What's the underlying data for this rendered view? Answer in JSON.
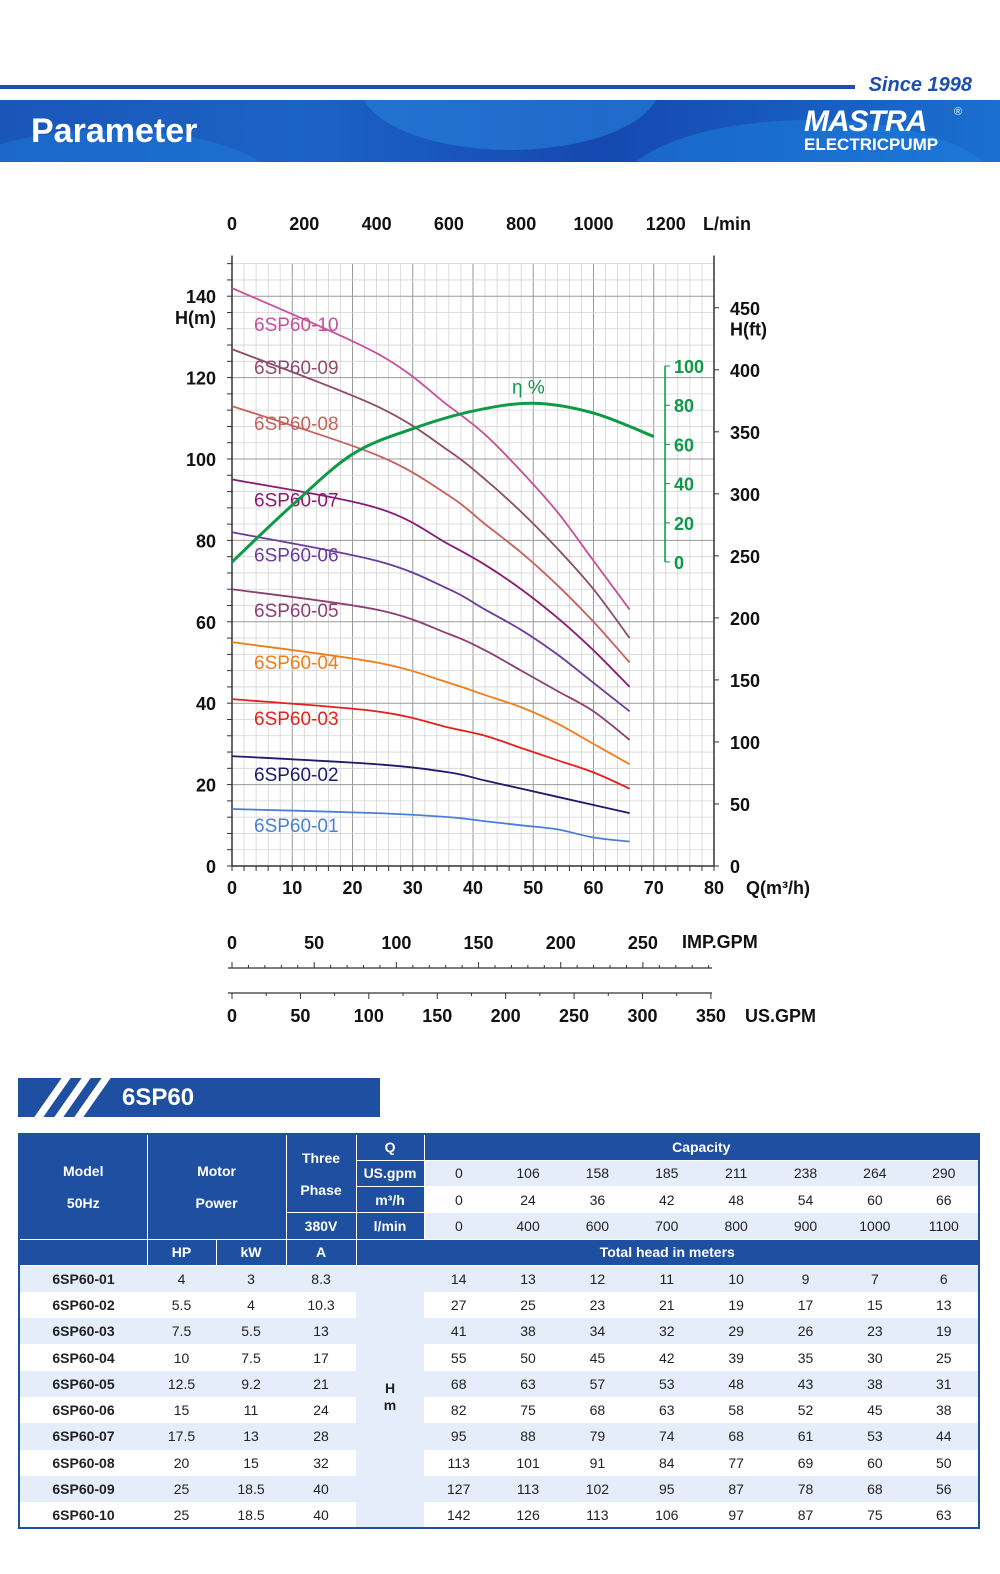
{
  "header": {
    "since": "Since 1998",
    "title": "Parameter",
    "logo_mark": "MASTRA",
    "logo_sub": "ELECTRICPUMP",
    "logo_reg": "®"
  },
  "chart_data": {
    "type": "line",
    "x_axis": {
      "label": "Q(m³/h)",
      "range": [
        0,
        80
      ],
      "ticks": [
        0,
        10,
        20,
        30,
        40,
        50,
        60,
        70,
        80
      ]
    },
    "y_axis": {
      "label": "H(m)",
      "range": [
        0,
        140
      ],
      "ticks": [
        0,
        20,
        40,
        60,
        80,
        100,
        120,
        140
      ]
    },
    "y_axis_right": {
      "label": "H(ft)",
      "ticks": [
        0,
        50,
        100,
        150,
        200,
        250,
        300,
        350,
        400,
        450
      ]
    },
    "x_axis_top": {
      "label": "L/min",
      "ticks": [
        0,
        200,
        400,
        600,
        800,
        1000,
        1200
      ]
    },
    "imp_axis": {
      "label": "IMP.GPM",
      "ticks": [
        0,
        50,
        100,
        150,
        200,
        250
      ]
    },
    "us_axis": {
      "label": "US.GPM",
      "ticks": [
        0,
        50,
        100,
        150,
        200,
        250,
        300,
        350
      ]
    },
    "eta_axis": {
      "label": "η %",
      "ticks": [
        0,
        20,
        40,
        60,
        80,
        100
      ]
    },
    "grid": true,
    "x": [
      0,
      24,
      36,
      42,
      48,
      54,
      60,
      66
    ],
    "series": [
      {
        "name": "6SP60-01",
        "color": "#4a7fd6",
        "values": [
          14,
          13,
          12,
          11,
          10,
          9,
          7,
          6
        ]
      },
      {
        "name": "6SP60-02",
        "color": "#1e1a6e",
        "values": [
          27,
          25,
          23,
          21,
          19,
          17,
          15,
          13
        ]
      },
      {
        "name": "6SP60-03",
        "color": "#e3211c",
        "values": [
          41,
          38,
          34,
          32,
          29,
          26,
          23,
          19
        ]
      },
      {
        "name": "6SP60-04",
        "color": "#f07d1a",
        "values": [
          55,
          50,
          45,
          42,
          39,
          35,
          30,
          25
        ]
      },
      {
        "name": "6SP60-05",
        "color": "#8e3f72",
        "values": [
          68,
          63,
          57,
          53,
          48,
          43,
          38,
          31
        ]
      },
      {
        "name": "6SP60-06",
        "color": "#6a3d9a",
        "values": [
          82,
          75,
          68,
          63,
          58,
          52,
          45,
          38
        ]
      },
      {
        "name": "6SP60-07",
        "color": "#8a1a74",
        "values": [
          95,
          88,
          79,
          74,
          68,
          61,
          53,
          44
        ]
      },
      {
        "name": "6SP60-08",
        "color": "#c4625c",
        "values": [
          113,
          101,
          91,
          84,
          77,
          69,
          60,
          50
        ]
      },
      {
        "name": "6SP60-09",
        "color": "#8e4c6a",
        "values": [
          127,
          113,
          102,
          95,
          87,
          78,
          68,
          56
        ]
      },
      {
        "name": "6SP60-10",
        "color": "#c84f98",
        "values": [
          142,
          126,
          113,
          106,
          97,
          87,
          75,
          63
        ]
      }
    ],
    "efficiency": {
      "color": "#0e9a48",
      "x": [
        0,
        10,
        20,
        30,
        40,
        50,
        60,
        70
      ],
      "values": [
        0,
        29,
        55,
        68,
        77,
        81,
        76,
        64
      ]
    }
  },
  "section": {
    "title": "6SP60"
  },
  "table": {
    "h_model": "Model",
    "h_50hz": "50Hz",
    "h_motor": "Motor",
    "h_power": "Power",
    "h_three": "Three",
    "h_phase": "Phase",
    "h_380v": "380V",
    "h_q": "Q",
    "h_capacity": "Capacity",
    "h_usgpm": "US.gpm",
    "h_m3h": "m³/h",
    "h_lmin": "l/min",
    "h_hp": "HP",
    "h_kw": "kW",
    "h_a": "A",
    "h_total": "Total head in meters",
    "h_H": "H",
    "h_m": "m",
    "usgpm": [
      0,
      106,
      158,
      185,
      211,
      238,
      264,
      290
    ],
    "m3h": [
      0,
      24,
      36,
      42,
      48,
      54,
      60,
      66
    ],
    "lmin": [
      0,
      400,
      600,
      700,
      800,
      900,
      1000,
      1100
    ],
    "rows": [
      {
        "model": "6SP60-01",
        "hp": "4",
        "kw": "3",
        "a": "8.3",
        "heads": [
          14,
          13,
          12,
          11,
          10,
          9,
          7,
          6
        ]
      },
      {
        "model": "6SP60-02",
        "hp": "5.5",
        "kw": "4",
        "a": "10.3",
        "heads": [
          27,
          25,
          23,
          21,
          19,
          17,
          15,
          13
        ]
      },
      {
        "model": "6SP60-03",
        "hp": "7.5",
        "kw": "5.5",
        "a": "13",
        "heads": [
          41,
          38,
          34,
          32,
          29,
          26,
          23,
          19
        ]
      },
      {
        "model": "6SP60-04",
        "hp": "10",
        "kw": "7.5",
        "a": "17",
        "heads": [
          55,
          50,
          45,
          42,
          39,
          35,
          30,
          25
        ]
      },
      {
        "model": "6SP60-05",
        "hp": "12.5",
        "kw": "9.2",
        "a": "21",
        "heads": [
          68,
          63,
          57,
          53,
          48,
          43,
          38,
          31
        ]
      },
      {
        "model": "6SP60-06",
        "hp": "15",
        "kw": "11",
        "a": "24",
        "heads": [
          82,
          75,
          68,
          63,
          58,
          52,
          45,
          38
        ]
      },
      {
        "model": "6SP60-07",
        "hp": "17.5",
        "kw": "13",
        "a": "28",
        "heads": [
          95,
          88,
          79,
          74,
          68,
          61,
          53,
          44
        ]
      },
      {
        "model": "6SP60-08",
        "hp": "20",
        "kw": "15",
        "a": "32",
        "heads": [
          113,
          101,
          91,
          84,
          77,
          69,
          60,
          50
        ]
      },
      {
        "model": "6SP60-09",
        "hp": "25",
        "kw": "18.5",
        "a": "40",
        "heads": [
          127,
          113,
          102,
          95,
          87,
          78,
          68,
          56
        ]
      },
      {
        "model": "6SP60-10",
        "hp": "25",
        "kw": "18.5",
        "a": "40",
        "heads": [
          142,
          126,
          113,
          106,
          97,
          87,
          75,
          63
        ]
      }
    ]
  }
}
